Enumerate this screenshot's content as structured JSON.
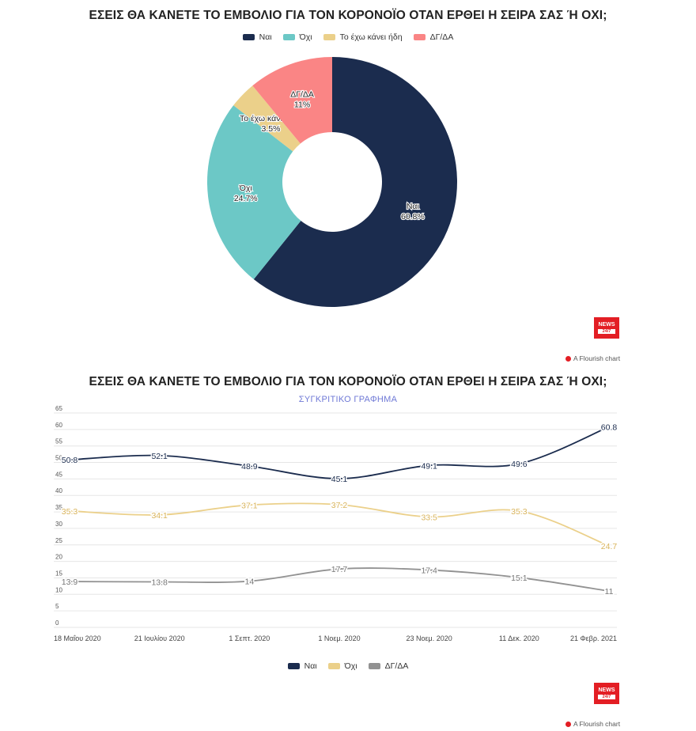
{
  "chart_data": [
    {
      "type": "pie",
      "title": "ΕΣΕΙΣ ΘΑ ΚΑΝΕΤΕ ΤΟ ΕΜΒΟΛΙΟ ΓΙΑ ΤΟΝ ΚΟΡΟΝΟΪΟ ΟΤΑΝ ΕΡΘΕΙ Η ΣΕΙΡΑ ΣΑΣ Ή ΟΧΙ;",
      "donut": true,
      "slices": [
        {
          "label": "Ναι",
          "value": 60.8,
          "display": "60.8%",
          "color": "#1b2c4e"
        },
        {
          "label": "Όχι",
          "value": 24.7,
          "display": "24.7%",
          "color": "#6cc8c6"
        },
        {
          "label": "Το έχω κάνει ήδη",
          "value": 3.5,
          "display": "3.5%",
          "color": "#ebd08a"
        },
        {
          "label": "ΔΓ/ΔΑ",
          "value": 11,
          "display": "11%",
          "color": "#fa8585"
        }
      ],
      "legend": [
        "Ναι",
        "Όχι",
        "Το έχω κάνει ήδη",
        "ΔΓ/ΔΑ"
      ]
    },
    {
      "type": "line",
      "title": "ΕΣΕΙΣ ΘΑ ΚΑΝΕΤΕ ΤΟ ΕΜΒΟΛΙΟ ΓΙΑ ΤΟΝ ΚΟΡΟΝΟΪΟ ΟΤΑΝ ΕΡΘΕΙ Η ΣΕΙΡΑ ΣΑΣ Ή ΟΧΙ;",
      "subtitle": "ΣΥΓΚΡΙΤΙΚΟ ΓΡΑΦΗΜΑ",
      "categories": [
        "18 Μαΐου 2020",
        "21 Ιουλίου 2020",
        "1 Σεπτ. 2020",
        "1 Νοεμ. 2020",
        "23 Νοεμ. 2020",
        "11 Δεκ. 2020",
        "21 Φεβρ. 2021"
      ],
      "series": [
        {
          "name": "Ναι",
          "color": "#1b2c4e",
          "values": [
            50.8,
            52.1,
            48.9,
            45.1,
            49.1,
            49.6,
            60.8
          ]
        },
        {
          "name": "Όχι",
          "color": "#ebd08a",
          "values": [
            35.3,
            34.1,
            37.1,
            37.2,
            33.5,
            35.3,
            24.7
          ]
        },
        {
          "name": "ΔΓ/ΔΑ",
          "color": "#929292",
          "values": [
            13.9,
            13.8,
            14,
            17.7,
            17.4,
            15.1,
            11
          ]
        }
      ],
      "yticks": [
        0,
        5,
        10,
        15,
        20,
        25,
        30,
        35,
        40,
        45,
        50,
        55,
        60,
        65
      ],
      "ylim": [
        0,
        65
      ],
      "grid": true,
      "legend": "bottom"
    }
  ],
  "branding": {
    "logo_top": "NEWS",
    "logo_bottom": "24/7",
    "flourish_text": "A Flourish chart"
  }
}
